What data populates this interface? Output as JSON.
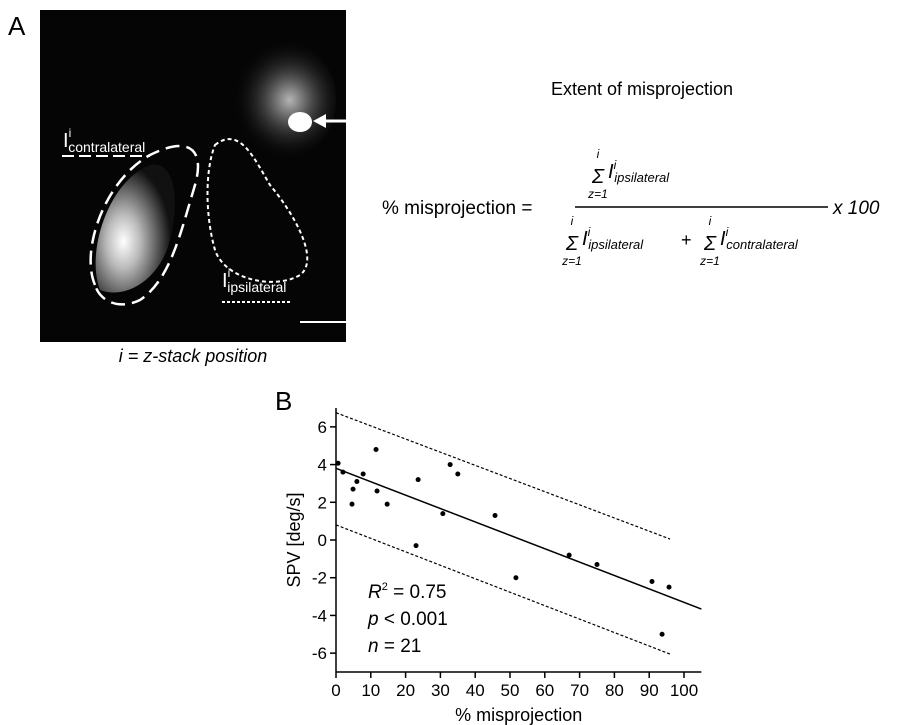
{
  "panel_a": {
    "label": "A",
    "contra_label": {
      "base": "I",
      "sup": "i",
      "sub": "contralateral"
    },
    "ipsi_label": {
      "base": "I",
      "sup": "i",
      "sub": "ipsilateral"
    },
    "caption": "i = z-stack position",
    "equation_title": "Extent of misprojection",
    "equation": {
      "lhs": "% misprojection =",
      "multiplier": "x 100",
      "plus": "+",
      "numerator": {
        "upper": "i",
        "sigma": "Σ",
        "lower": "z=1",
        "base": "I",
        "sup": "i",
        "sub": "ipsilateral"
      },
      "denominator": [
        {
          "upper": "i",
          "sigma": "Σ",
          "lower": "z=1",
          "base": "I",
          "sup": "i",
          "sub": "ipsilateral"
        },
        {
          "upper": "i",
          "sigma": "Σ",
          "lower": "z=1",
          "base": "I",
          "sup": "i",
          "sub": "contralateral"
        }
      ]
    }
  },
  "chart_data": {
    "type": "scatter",
    "panel_label": "B",
    "x": [
      0.6,
      2,
      4.6,
      4.9,
      6,
      7.8,
      11.5,
      11.8,
      14.7,
      23,
      23.6,
      30.7,
      32.8,
      35,
      45.7,
      51.7,
      67,
      75,
      90.8,
      93.7,
      95.7
    ],
    "values": [
      4.07,
      3.6,
      1.9,
      2.7,
      3.1,
      3.5,
      4.8,
      2.6,
      1.9,
      -0.3,
      3.2,
      1.4,
      4.0,
      3.5,
      1.3,
      -2.0,
      -0.8,
      -1.3,
      -2.2,
      -5.0,
      -2.5
    ],
    "color": "#000000",
    "lines": [
      {
        "x": [
          0,
          105
        ],
        "values": [
          3.8,
          -3.66
        ],
        "style": "solid"
      },
      {
        "x": [
          0,
          96
        ],
        "values": [
          6.75,
          0.05
        ],
        "style": "dotted"
      },
      {
        "x": [
          0,
          96
        ],
        "values": [
          0.8,
          -6.05
        ],
        "style": "dotted"
      }
    ],
    "xlim": [
      0,
      105
    ],
    "ylim": [
      -7,
      7
    ],
    "xticks": [
      0,
      10,
      20,
      30,
      40,
      50,
      60,
      70,
      80,
      90,
      100
    ],
    "yticks": [
      -6,
      -4,
      -2,
      0,
      2,
      4,
      6
    ],
    "xlabel": "% misprojection",
    "ylabel": "SPV [deg/s]",
    "annotations": [
      {
        "var": "R",
        "sup": "2",
        "rest": " = 0.75"
      },
      {
        "var": "p",
        "rest": " < 0.001"
      },
      {
        "var": "n",
        "rest": " = 21"
      }
    ]
  }
}
